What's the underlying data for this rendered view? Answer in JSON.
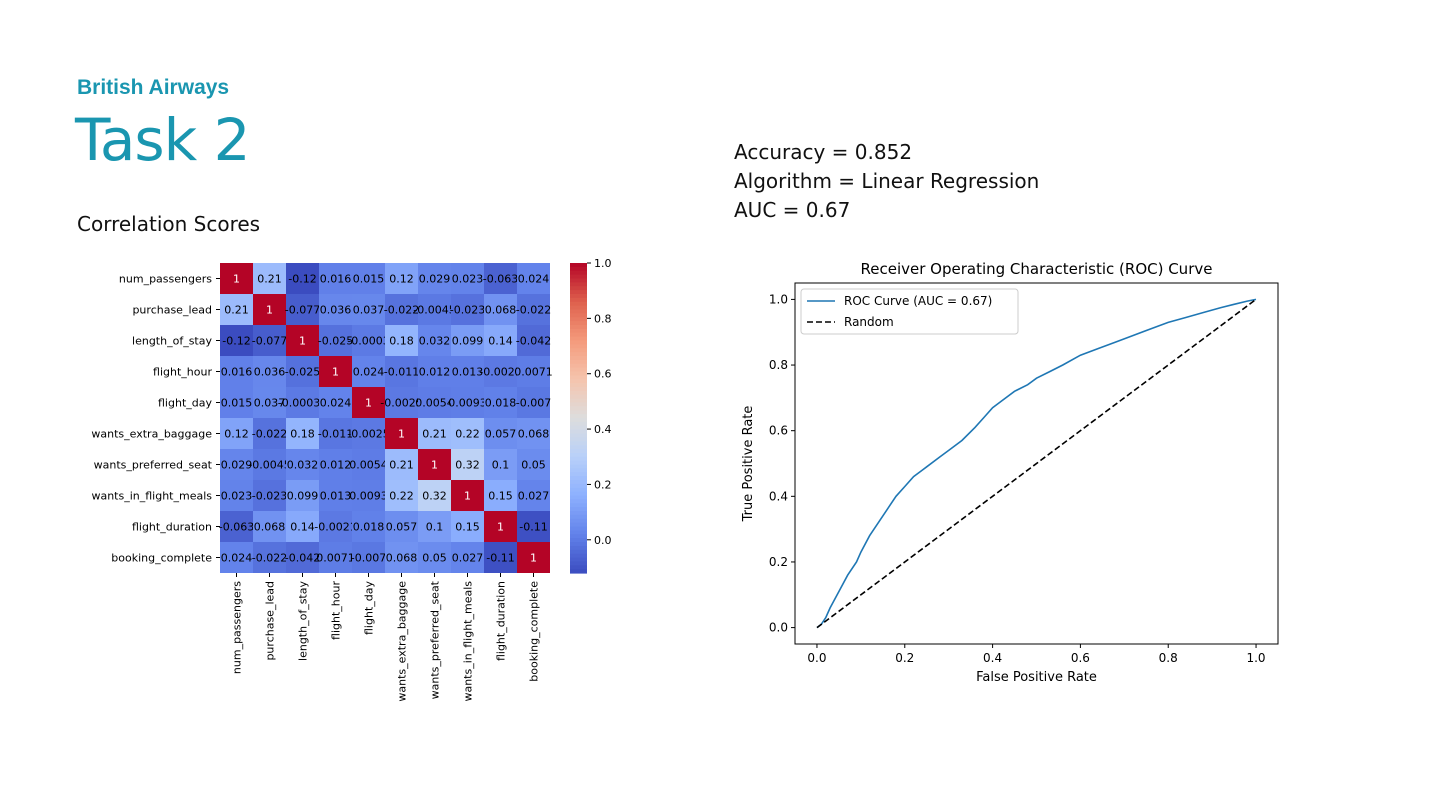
{
  "header": {
    "brand": "British Airways",
    "title": "Task 2",
    "section_title": "Correlation Scores"
  },
  "metrics": {
    "accuracy": "Accuracy = 0.852",
    "algorithm": "Algorithm = Linear Regression",
    "auc": "AUC = 0.67"
  },
  "colors": {
    "brand": "#1a96b0",
    "roc_line": "#1f77b4",
    "random_line": "#000000"
  },
  "chart_data": [
    {
      "type": "heatmap",
      "colormap": "coolwarm",
      "variables": [
        "num_passengers",
        "purchase_lead",
        "length_of_stay",
        "flight_hour",
        "flight_day",
        "wants_extra_baggage",
        "wants_preferred_seat",
        "wants_in_flight_meals",
        "flight_duration",
        "booking_complete"
      ],
      "values": [
        [
          1,
          0.21,
          -0.12,
          0.016,
          0.015,
          0.12,
          0.029,
          0.023,
          -0.063,
          0.024
        ],
        [
          0.21,
          1,
          -0.077,
          0.036,
          0.037,
          -0.022,
          -0.0045,
          -0.023,
          0.068,
          -0.022
        ],
        [
          -0.12,
          -0.077,
          1,
          -0.025,
          -0.0003,
          0.18,
          0.032,
          0.099,
          0.14,
          -0.042
        ],
        [
          0.016,
          0.036,
          -0.025,
          1,
          0.024,
          -0.011,
          0.012,
          0.013,
          -0.0021,
          0.0071
        ],
        [
          0.015,
          0.037,
          -0.0003,
          0.024,
          1,
          -0.0025,
          0.0054,
          0.0093,
          0.018,
          -0.007
        ],
        [
          0.12,
          -0.022,
          0.18,
          -0.011,
          -0.0025,
          1,
          0.21,
          0.22,
          0.057,
          0.068
        ],
        [
          0.029,
          -0.0045,
          0.032,
          0.012,
          0.0054,
          0.21,
          1,
          0.32,
          0.1,
          0.05
        ],
        [
          0.023,
          -0.023,
          0.099,
          0.013,
          0.0093,
          0.22,
          0.32,
          1,
          0.15,
          0.027
        ],
        [
          -0.063,
          0.068,
          0.14,
          -0.0021,
          0.018,
          0.057,
          0.1,
          0.15,
          1,
          -0.11
        ],
        [
          0.024,
          -0.022,
          -0.042,
          0.0071,
          -0.007,
          0.068,
          0.05,
          0.027,
          -0.11,
          1
        ]
      ],
      "labels": [
        [
          "1",
          "0.21",
          "-0.12",
          "0.016",
          "0.015",
          "0.12",
          "0.029",
          "0.023",
          "-0.063",
          "0.024"
        ],
        [
          "0.21",
          "1",
          "-0.077",
          "0.036",
          "0.037",
          "-0.022",
          "-0.0045",
          "-0.023",
          "0.068",
          "-0.022"
        ],
        [
          "-0.12",
          "-0.077",
          "1",
          "-0.025",
          "-0.0003",
          "0.18",
          "0.032",
          "0.099",
          "0.14",
          "-0.042"
        ],
        [
          "0.016",
          "0.036",
          "-0.025",
          "1",
          "0.024",
          "-0.011",
          "0.012",
          "0.013",
          "-0.0021",
          "0.0071"
        ],
        [
          "0.015",
          "0.037",
          "-0.00031",
          "0.024",
          "1",
          "-0.0025",
          "0.0054",
          "0.0093",
          "0.018",
          "-0.007"
        ],
        [
          "0.12",
          "-0.022",
          "0.18",
          "-0.011",
          "-0.0025",
          "1",
          "0.21",
          "0.22",
          "0.057",
          "0.068"
        ],
        [
          "0.029",
          "-0.0045",
          "0.032",
          "0.012",
          "0.0054",
          "0.21",
          "1",
          "0.32",
          "0.1",
          "0.05"
        ],
        [
          "0.023",
          "-0.023",
          "0.099",
          "0.013",
          "0.0093",
          "0.22",
          "0.32",
          "1",
          "0.15",
          "0.027"
        ],
        [
          "-0.063",
          "0.068",
          "0.14",
          "-0.0021",
          "0.018",
          "0.057",
          "0.1",
          "0.15",
          "1",
          "-0.11"
        ],
        [
          "0.024",
          "-0.022",
          "-0.042",
          "0.0071",
          "-0.007",
          "0.068",
          "0.05",
          "0.027",
          "-0.11",
          "1"
        ]
      ],
      "colorbar": {
        "min": -0.12,
        "max": 1.0,
        "ticks": [
          0.0,
          0.2,
          0.4,
          0.6,
          0.8,
          1.0
        ],
        "tick_labels": [
          "0.0",
          "0.2",
          "0.4",
          "0.6",
          "0.8",
          "1.0"
        ]
      }
    },
    {
      "type": "line",
      "title": "Receiver Operating Characteristic (ROC) Curve",
      "xlabel": "False Positive Rate",
      "ylabel": "True Positive Rate",
      "xlim": [
        -0.05,
        1.05
      ],
      "ylim": [
        -0.05,
        1.05
      ],
      "xticks": [
        0.0,
        0.2,
        0.4,
        0.6,
        0.8,
        1.0
      ],
      "xtick_labels": [
        "0.0",
        "0.2",
        "0.4",
        "0.6",
        "0.8",
        "1.0"
      ],
      "yticks": [
        0.0,
        0.2,
        0.4,
        0.6,
        0.8,
        1.0
      ],
      "ytick_labels": [
        "0.0",
        "0.2",
        "0.4",
        "0.6",
        "0.8",
        "1.0"
      ],
      "legend_position": "upper-left",
      "series": [
        {
          "name": "ROC Curve (AUC = 0.67)",
          "style": "solid",
          "x": [
            0,
            0.01,
            0.02,
            0.03,
            0.05,
            0.07,
            0.09,
            0.1,
            0.12,
            0.14,
            0.16,
            0.18,
            0.2,
            0.22,
            0.24,
            0.25,
            0.28,
            0.3,
            0.33,
            0.36,
            0.38,
            0.4,
            0.42,
            0.45,
            0.48,
            0.5,
            0.53,
            0.56,
            0.6,
            0.64,
            0.68,
            0.72,
            0.76,
            0.8,
            0.84,
            0.88,
            0.92,
            0.95,
            0.98,
            1.0
          ],
          "y": [
            0,
            0.01,
            0.03,
            0.06,
            0.11,
            0.16,
            0.2,
            0.23,
            0.28,
            0.32,
            0.36,
            0.4,
            0.43,
            0.46,
            0.48,
            0.49,
            0.52,
            0.54,
            0.57,
            0.61,
            0.64,
            0.67,
            0.69,
            0.72,
            0.74,
            0.76,
            0.78,
            0.8,
            0.83,
            0.85,
            0.87,
            0.89,
            0.91,
            0.93,
            0.945,
            0.96,
            0.975,
            0.985,
            0.995,
            1.0
          ]
        },
        {
          "name": "Random",
          "style": "dashed",
          "x": [
            0,
            1
          ],
          "y": [
            0,
            1
          ]
        }
      ]
    }
  ]
}
